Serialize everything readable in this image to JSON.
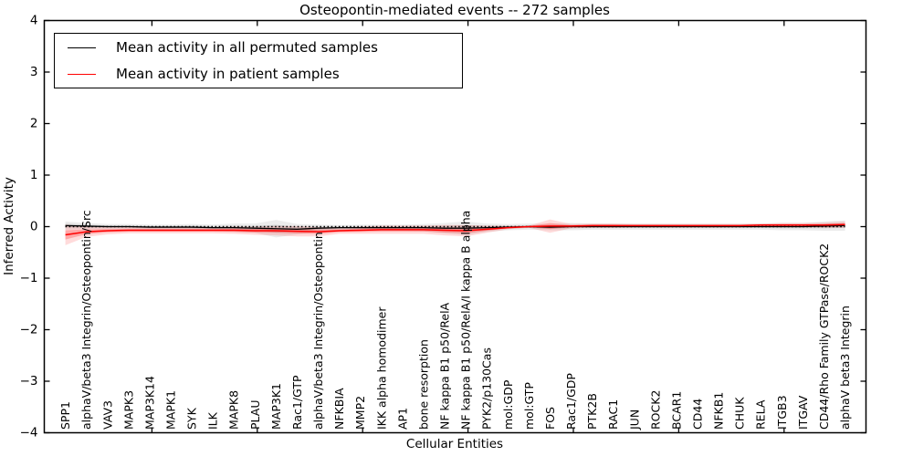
{
  "chart": {
    "title": "Osteopontin-mediated events -- 272 samples",
    "xlabel": "Cellular Entities",
    "ylabel": "Inferred Activity"
  },
  "legend": {
    "items": [
      {
        "label": "Mean activity in all permuted samples",
        "color": "#000000"
      },
      {
        "label": "Mean activity in patient samples",
        "color": "#ff0000"
      }
    ]
  },
  "chart_data": {
    "type": "line",
    "title": "Osteopontin-mediated events -- 272 samples",
    "xlabel": "Cellular Entities",
    "ylabel": "Inferred Activity",
    "ylim": [
      -4,
      4
    ],
    "yticks": [
      "4",
      "3",
      "2",
      "1",
      "0",
      "−1",
      "−2",
      "−3",
      "−4"
    ],
    "grid": false,
    "legend_position": "upper left",
    "x_tick_label_rotation_deg": 90,
    "categories": [
      "SPP1",
      "alphaV/beta3 Integrin/Osteopontin/Src",
      "VAV3",
      "MAPK3",
      "MAP3K14",
      "MAPK1",
      "SYK",
      "ILK",
      "MAPK8",
      "PLAU",
      "MAP3K1",
      "Rac1/GTP",
      "alphaV/beta3 Integrin/Osteopontin",
      "NFKBIA",
      "MMP2",
      "IKK alpha homodimer",
      "AP1",
      "bone resorption",
      "NF kappa B1 p50/RelA",
      "NF kappa B1 p50/RelA/I kappa B alpha",
      "PYK2/p130Cas",
      "mol:GDP",
      "mol:GTP",
      "FOS",
      "Rac1/GDP",
      "PTK2B",
      "RAC1",
      "JUN",
      "ROCK2",
      "BCAR1",
      "CD44",
      "NFKB1",
      "CHUK",
      "RELA",
      "ITGB3",
      "ITGAV",
      "CD44/Rho Family GTPase/ROCK2",
      "alphaV beta3 Integrin"
    ],
    "series": [
      {
        "name": "Mean activity in all permuted samples",
        "color": "#000000",
        "style": "solid",
        "values": [
          0.02,
          0.01,
          0.0,
          0.0,
          -0.01,
          -0.01,
          -0.01,
          -0.02,
          -0.02,
          -0.03,
          -0.04,
          -0.05,
          -0.03,
          -0.02,
          -0.02,
          -0.02,
          -0.02,
          -0.02,
          -0.03,
          -0.03,
          -0.02,
          -0.01,
          0.0,
          -0.01,
          0.0,
          0.0,
          0.0,
          0.0,
          0.0,
          0.0,
          0.0,
          0.0,
          0.0,
          0.0,
          0.0,
          0.0,
          0.01,
          0.02
        ]
      },
      {
        "name": "Mean activity in patient samples",
        "color": "#ff0000",
        "style": "solid",
        "values": [
          -0.16,
          -0.1,
          -0.08,
          -0.07,
          -0.07,
          -0.07,
          -0.07,
          -0.07,
          -0.07,
          -0.08,
          -0.08,
          -0.09,
          -0.1,
          -0.08,
          -0.07,
          -0.06,
          -0.06,
          -0.06,
          -0.07,
          -0.08,
          -0.05,
          -0.02,
          0.0,
          0.01,
          0.01,
          0.02,
          0.02,
          0.02,
          0.02,
          0.02,
          0.02,
          0.02,
          0.02,
          0.03,
          0.03,
          0.03,
          0.03,
          0.04
        ]
      }
    ],
    "bands": [
      {
        "name": "permuted-samples-band",
        "color": "#888888",
        "center_series": 0,
        "half_widths": [
          0.08,
          0.06,
          0.05,
          0.05,
          0.05,
          0.05,
          0.06,
          0.06,
          0.08,
          0.09,
          0.17,
          0.1,
          0.07,
          0.05,
          0.06,
          0.06,
          0.06,
          0.07,
          0.1,
          0.13,
          0.08,
          0.06,
          0.06,
          0.06,
          0.07,
          0.06,
          0.06,
          0.06,
          0.06,
          0.06,
          0.06,
          0.06,
          0.06,
          0.06,
          0.07,
          0.07,
          0.09,
          0.1
        ]
      },
      {
        "name": "patient-samples-band",
        "color": "#ff2222",
        "center_series": 1,
        "half_widths": [
          0.2,
          0.1,
          0.07,
          0.06,
          0.06,
          0.06,
          0.06,
          0.06,
          0.07,
          0.08,
          0.09,
          0.1,
          0.09,
          0.06,
          0.07,
          0.08,
          0.08,
          0.08,
          0.1,
          0.11,
          0.07,
          0.03,
          0.02,
          0.13,
          0.04,
          0.04,
          0.04,
          0.03,
          0.03,
          0.03,
          0.03,
          0.03,
          0.03,
          0.03,
          0.04,
          0.04,
          0.05,
          0.06
        ]
      }
    ],
    "zero_line": {
      "value": 0,
      "style": "dotted",
      "color": "#000000"
    }
  }
}
